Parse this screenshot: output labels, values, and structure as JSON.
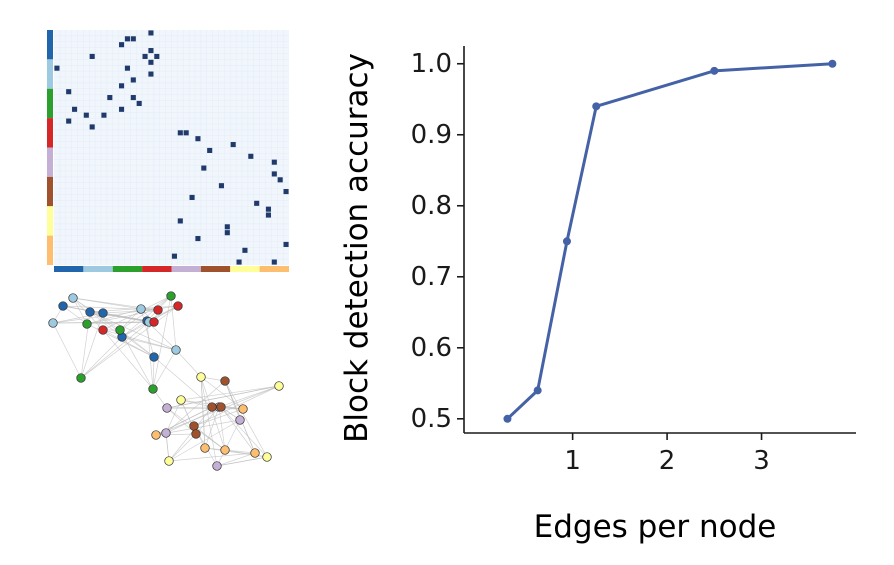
{
  "chart_data": [
    {
      "type": "heatmap",
      "n_nodes": 40,
      "blocks": 8,
      "block_colors": [
        "#2166ac",
        "#9ecae1",
        "#2ca02c",
        "#d62728",
        "#c5b0d5",
        "#a0522d",
        "#ffff99",
        "#fdbf6f"
      ],
      "cell_color": "#1f3a6b",
      "background": "#f0f6fc",
      "grid": true,
      "edges": [
        [
          0,
          16
        ],
        [
          1,
          12
        ],
        [
          1,
          13
        ],
        [
          2,
          11
        ],
        [
          3,
          16
        ],
        [
          4,
          6
        ],
        [
          4,
          15
        ],
        [
          4,
          17
        ],
        [
          5,
          16
        ],
        [
          6,
          0
        ],
        [
          6,
          12
        ],
        [
          7,
          16
        ],
        [
          8,
          13
        ],
        [
          9,
          11
        ],
        [
          10,
          2
        ],
        [
          11,
          9
        ],
        [
          11,
          13
        ],
        [
          12,
          14
        ],
        [
          13,
          3
        ],
        [
          13,
          11
        ],
        [
          14,
          5
        ],
        [
          14,
          8
        ],
        [
          15,
          2
        ],
        [
          16,
          6
        ],
        [
          17,
          21
        ],
        [
          17,
          22
        ],
        [
          18,
          24
        ],
        [
          19,
          30
        ],
        [
          20,
          26
        ],
        [
          21,
          33
        ],
        [
          22,
          37
        ],
        [
          23,
          25
        ],
        [
          24,
          37
        ],
        [
          25,
          38
        ],
        [
          26,
          28
        ],
        [
          27,
          39
        ],
        [
          28,
          23
        ],
        [
          29,
          34
        ],
        [
          30,
          36
        ],
        [
          31,
          36
        ],
        [
          32,
          21
        ],
        [
          33,
          29
        ],
        [
          34,
          29
        ],
        [
          35,
          24
        ],
        [
          36,
          39
        ],
        [
          37,
          32
        ],
        [
          38,
          20
        ],
        [
          39,
          31
        ],
        [
          39,
          37
        ]
      ]
    },
    {
      "type": "network",
      "edge_color": "#bdbdbd",
      "clusters": 2,
      "nodes_per_cluster": 20
    },
    {
      "type": "line",
      "xlabel": "Edges per node",
      "ylabel": "Block detection accuracy",
      "x": [
        0.31,
        0.63,
        0.94,
        1.25,
        2.5,
        3.75
      ],
      "series": [
        {
          "values": [
            0.5,
            0.54,
            0.75,
            0.94,
            0.99,
            1.0
          ]
        }
      ],
      "xlim": [
        -0.15,
        4.0
      ],
      "ylim": [
        0.48,
        1.025
      ],
      "xticks": [
        1,
        2,
        3
      ],
      "xtick_labels": [
        "1",
        "2",
        "3"
      ],
      "yticks": [
        0.5,
        0.6,
        0.7,
        0.8,
        0.9,
        1.0
      ],
      "ytick_labels": [
        "0.5",
        "0.6",
        "0.7",
        "0.8",
        "0.9",
        "1.0"
      ],
      "line_color": "#4462a5",
      "grid": false,
      "legend": "none"
    }
  ]
}
